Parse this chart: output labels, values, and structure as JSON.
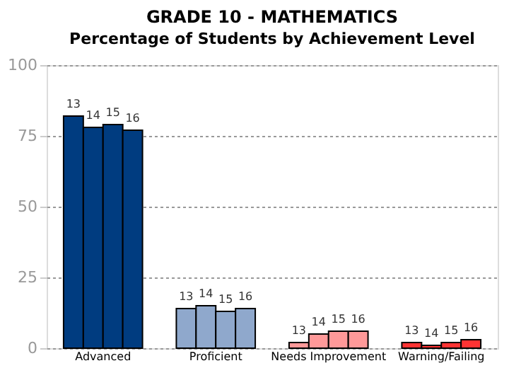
{
  "chart_data": {
    "type": "bar",
    "title": "GRADE 10 - MATHEMATICS",
    "subtitle": "Percentage of Students by Achievement Level",
    "categories": [
      "Advanced",
      "Proficient",
      "Needs Improvement",
      "Warning/Failing"
    ],
    "series": [
      {
        "name": "13",
        "colors": [
          "#003c80",
          "#8fa8cc",
          "#ff9999",
          "#ff3333"
        ],
        "values": [
          82,
          14,
          2,
          2
        ]
      },
      {
        "name": "14",
        "colors": [
          "#003c80",
          "#8fa8cc",
          "#ff9999",
          "#ff3333"
        ],
        "values": [
          78,
          15,
          5,
          1
        ]
      },
      {
        "name": "15",
        "colors": [
          "#003c80",
          "#8fa8cc",
          "#ff9999",
          "#ff3333"
        ],
        "values": [
          79,
          13,
          6,
          2
        ]
      },
      {
        "name": "16",
        "colors": [
          "#003c80",
          "#8fa8cc",
          "#ff9999",
          "#ff3333"
        ],
        "values": [
          77,
          14,
          6,
          3
        ]
      }
    ],
    "ylim": [
      0,
      100
    ],
    "yticks": [
      0,
      25,
      50,
      75,
      100
    ],
    "grid": "y"
  }
}
